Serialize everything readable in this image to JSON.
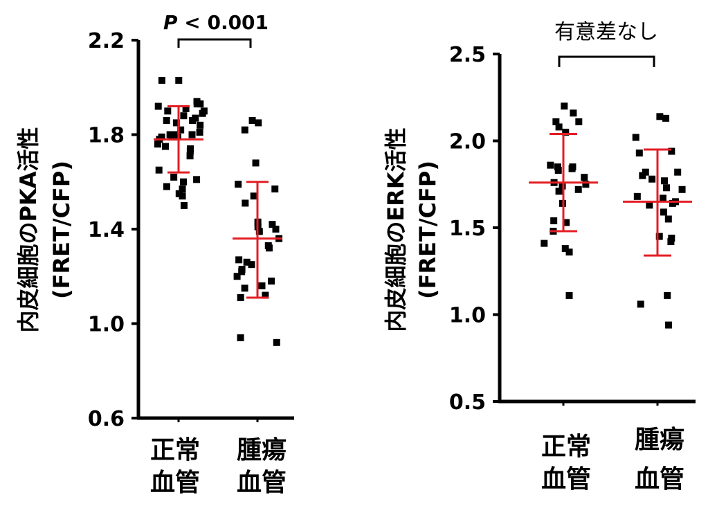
{
  "chart_data": [
    {
      "type": "scatter",
      "ylabel_line1": "内皮細胞のPKA活性",
      "ylabel_line2": "(FRET/CFP)",
      "ylim": [
        0.6,
        2.2
      ],
      "yticks": [
        "0.6",
        "1.0",
        "1.4",
        "1.8",
        "2.2"
      ],
      "categories": [
        {
          "line1": "正常",
          "line2": "血管"
        },
        {
          "line1": "腫瘍",
          "line2": "血管"
        }
      ],
      "significance": {
        "p_italic": "P",
        "p_rest": " < 0.001"
      },
      "summary": [
        {
          "mean": 1.78,
          "upper": 1.92,
          "lower": 1.64
        },
        {
          "mean": 1.36,
          "upper": 1.6,
          "lower": 1.11
        }
      ],
      "series": [
        {
          "values": [
            2.03,
            2.03,
            1.94,
            1.93,
            1.93,
            1.92,
            1.91,
            1.9,
            1.9,
            1.89,
            1.88,
            1.87,
            1.86,
            1.86,
            1.85,
            1.84,
            1.82,
            1.81,
            1.8,
            1.8,
            1.8,
            1.79,
            1.79,
            1.79,
            1.78,
            1.76,
            1.75,
            1.74,
            1.73,
            1.71,
            1.65,
            1.62,
            1.61,
            1.6,
            1.58,
            1.57,
            1.55,
            1.54,
            1.5
          ]
        },
        {
          "values": [
            1.86,
            1.85,
            1.82,
            1.68,
            1.59,
            1.57,
            1.54,
            1.51,
            1.43,
            1.42,
            1.41,
            1.4,
            1.39,
            1.36,
            1.33,
            1.32,
            1.27,
            1.26,
            1.25,
            1.23,
            1.22,
            1.2,
            1.18,
            1.16,
            1.15,
            1.12,
            1.11,
            0.94,
            0.92
          ]
        }
      ]
    },
    {
      "type": "scatter",
      "ylabel_line1": "内皮細胞のERK活性",
      "ylabel_line2": "(FRET/CFP)",
      "ylim": [
        0.5,
        2.5
      ],
      "yticks": [
        "0.5",
        "1.0",
        "1.5",
        "2.0",
        "2.5"
      ],
      "categories": [
        {
          "line1": "正常",
          "line2": "血管"
        },
        {
          "line1": "腫瘍",
          "line2": "血管"
        }
      ],
      "significance": {
        "text": "有意差なし"
      },
      "summary": [
        {
          "mean": 1.76,
          "upper": 2.04,
          "lower": 1.48
        },
        {
          "mean": 1.65,
          "upper": 1.95,
          "lower": 1.34
        }
      ],
      "series": [
        {
          "values": [
            2.2,
            2.16,
            2.11,
            2.11,
            2.08,
            2.05,
            1.86,
            1.85,
            1.85,
            1.84,
            1.83,
            1.79,
            1.76,
            1.75,
            1.74,
            1.72,
            1.71,
            1.64,
            1.54,
            1.53,
            1.48,
            1.41,
            1.38,
            1.36,
            1.11
          ]
        },
        {
          "values": [
            2.14,
            2.13,
            2.02,
            1.94,
            1.93,
            1.82,
            1.82,
            1.8,
            1.78,
            1.77,
            1.73,
            1.72,
            1.68,
            1.67,
            1.65,
            1.64,
            1.63,
            1.59,
            1.55,
            1.45,
            1.44,
            1.42,
            1.11,
            1.06,
            0.94
          ]
        }
      ]
    }
  ]
}
